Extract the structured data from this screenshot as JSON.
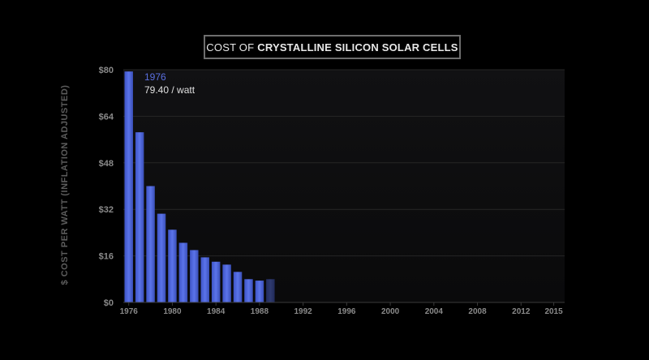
{
  "title": {
    "prefix": "COST OF",
    "main": "CRYSTALLINE SILICON SOLAR CELLS"
  },
  "chart_data": {
    "type": "bar",
    "title": "COST OF CRYSTALLINE SILICON SOLAR CELLS",
    "ylabel": "$ COST PER WATT (INFLATION ADJUSTED)",
    "xlabel": "",
    "ylim": [
      0,
      80
    ],
    "y_ticks": [
      "$0",
      "$16",
      "$32",
      "$48",
      "$64",
      "$80"
    ],
    "y_tick_values": [
      0,
      16,
      32,
      48,
      64,
      80
    ],
    "x_tick_labels": [
      "1976",
      "1980",
      "1984",
      "1988",
      "1992",
      "1996",
      "2000",
      "2004",
      "2008",
      "2012",
      "2015"
    ],
    "x_tick_values": [
      1976,
      1980,
      1984,
      1988,
      1992,
      1996,
      2000,
      2004,
      2008,
      2012,
      2015
    ],
    "xlim": [
      1975.5,
      2016
    ],
    "grid": true,
    "bar_color": "#4b62d8",
    "x": [
      1976,
      1977,
      1978,
      1979,
      1980,
      1981,
      1982,
      1983,
      1984,
      1985,
      1986,
      1987,
      1988,
      1989
    ],
    "values": [
      79.4,
      58.5,
      40.0,
      30.5,
      25.0,
      20.5,
      18.0,
      15.5,
      14.0,
      13.0,
      10.5,
      8.0,
      7.5,
      8.0
    ],
    "annotation": {
      "year": "1976",
      "value_text": "79.40 / watt"
    }
  }
}
